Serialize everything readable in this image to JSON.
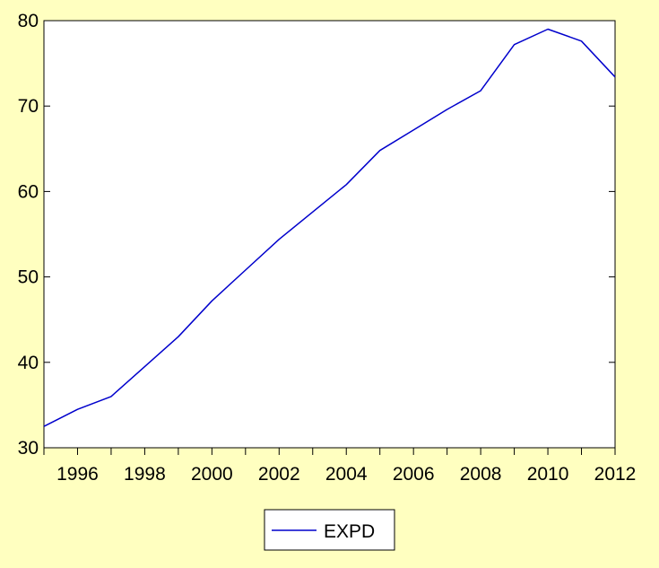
{
  "chart_data": {
    "type": "line",
    "title": "",
    "xlabel": "",
    "ylabel": "",
    "x": [
      1995,
      1996,
      1997,
      1998,
      1999,
      2000,
      2001,
      2002,
      2003,
      2004,
      2005,
      2006,
      2007,
      2008,
      2009,
      2010,
      2011,
      2012
    ],
    "series": [
      {
        "name": "EXPD",
        "color": "#0000CC",
        "values": [
          32.5,
          34.5,
          36.0,
          39.5,
          43.0,
          47.2,
          50.8,
          54.4,
          57.6,
          60.8,
          64.8,
          67.2,
          69.6,
          71.8,
          77.2,
          79.0,
          77.6,
          73.4
        ]
      }
    ],
    "xlim": [
      1995,
      2012
    ],
    "ylim": [
      30,
      80
    ],
    "x_ticks": [
      1996,
      1998,
      2000,
      2002,
      2004,
      2006,
      2008,
      2010,
      2012
    ],
    "x_tick_labels": [
      "1996",
      "1998",
      "2000",
      "2002",
      "2004",
      "2006",
      "2008",
      "2010",
      "2012"
    ],
    "y_ticks": [
      30,
      40,
      50,
      60,
      70,
      80
    ],
    "y_tick_labels": [
      "30",
      "40",
      "50",
      "60",
      "70",
      "80"
    ],
    "grid": false,
    "legend_position": "bottom-center",
    "background_color": "#FFFFC0",
    "plot_background_color": "#FFFFFF"
  }
}
